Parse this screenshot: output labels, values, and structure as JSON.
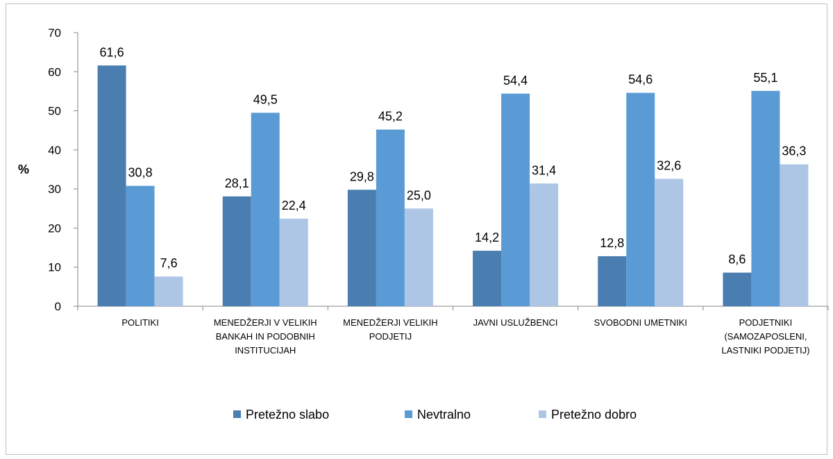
{
  "chart_data": {
    "type": "bar",
    "ylabel": "%",
    "ylim": [
      0,
      70
    ],
    "yticks": [
      0,
      10,
      20,
      30,
      40,
      50,
      60,
      70
    ],
    "grid": false,
    "legend_position": "bottom",
    "categories": [
      [
        "POLITIKI"
      ],
      [
        "MENEDŽERJI V VELIKIH",
        "BANKAH IN PODOBNIH",
        "INSTITUCIJAH"
      ],
      [
        "MENEDŽERJI VELIKIH",
        "PODJETIJ"
      ],
      [
        "JAVNI USLUŽBENCI"
      ],
      [
        "SVOBODNI UMETNIKI"
      ],
      [
        "PODJETNIKI",
        "(SAMOZAPOSLENI,",
        "LASTNIKI PODJETIJ)"
      ]
    ],
    "series": [
      {
        "name": "Pretežno slabo",
        "color": "#4a7eb0",
        "values": [
          61.6,
          28.1,
          29.8,
          14.2,
          12.8,
          8.6
        ],
        "labels": [
          "61,6",
          "28,1",
          "29,8",
          "14,2",
          "12,8",
          "8,6"
        ]
      },
      {
        "name": "Nevtralno",
        "color": "#5b9bd5",
        "values": [
          30.8,
          49.5,
          45.2,
          54.4,
          54.6,
          55.1
        ],
        "labels": [
          "30,8",
          "49,5",
          "45,2",
          "54,4",
          "54,6",
          "55,1"
        ]
      },
      {
        "name": "Pretežno dobro",
        "color": "#adc6e5",
        "values": [
          7.6,
          22.4,
          25.0,
          31.4,
          32.6,
          36.3
        ],
        "labels": [
          "7,6",
          "22,4",
          "25,0",
          "31,4",
          "32,6",
          "36,3"
        ]
      }
    ]
  }
}
